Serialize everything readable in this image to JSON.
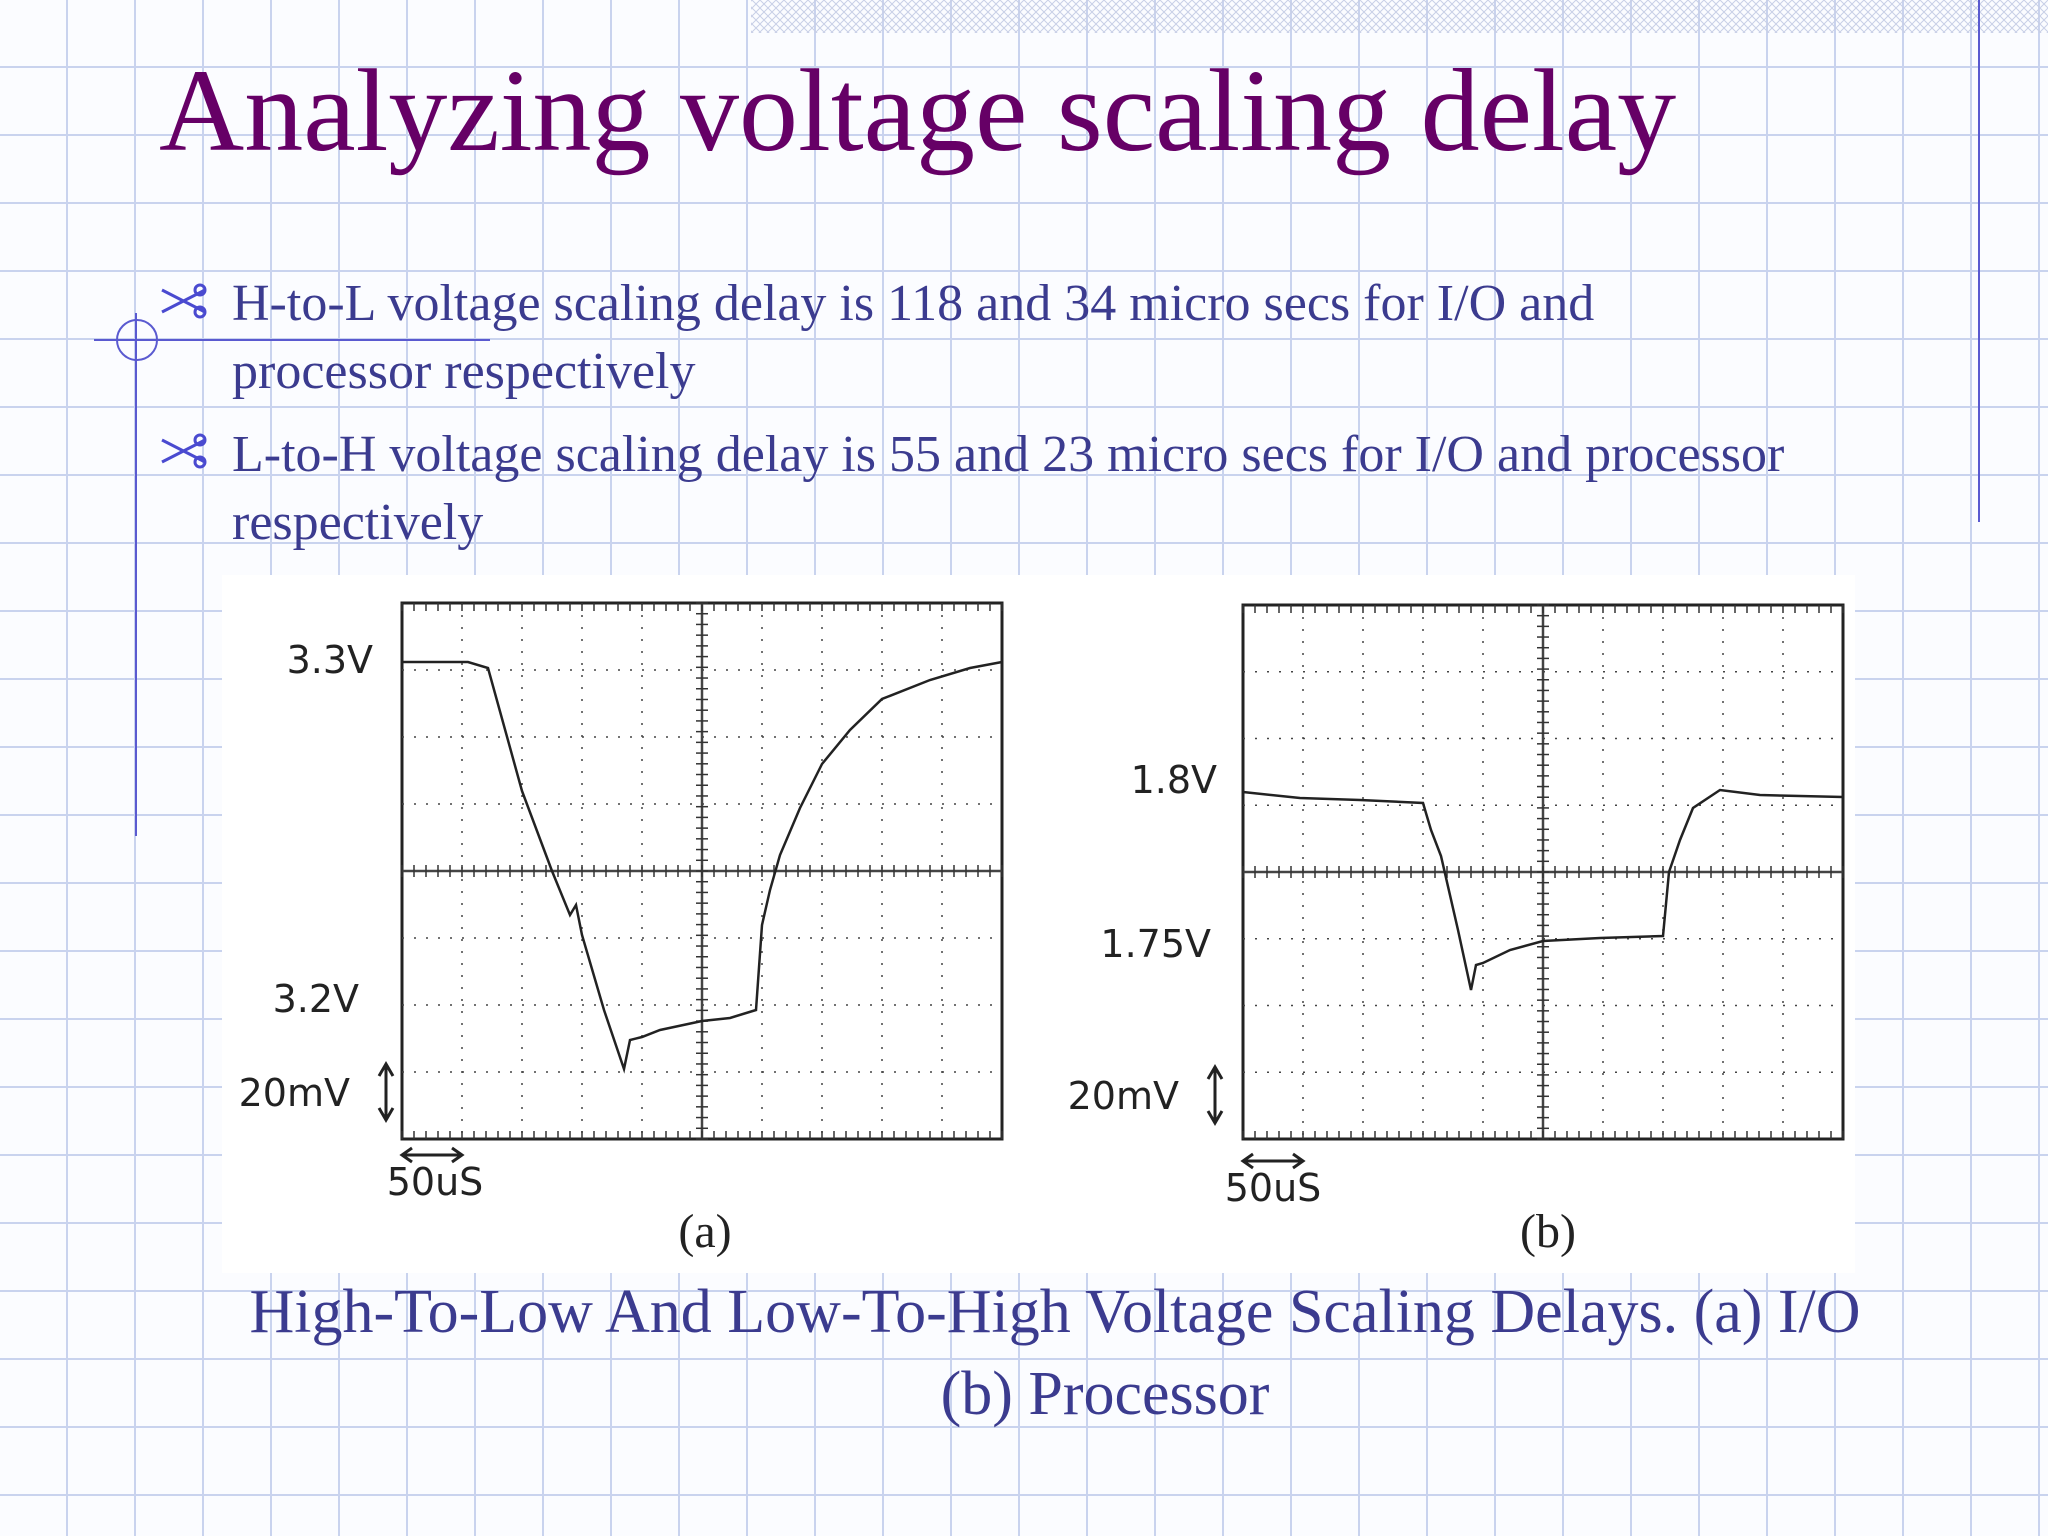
{
  "title": "Analyzing voltage scaling delay",
  "bullets": [
    "H-to-L voltage scaling delay is 118 and 34 micro secs for I/O and processor respectively",
    "L-to-H voltage scaling delay is 55 and 23 micro secs for I/O and processor respectively"
  ],
  "figures": [
    {
      "levels": [
        "3.3V",
        "3.2V"
      ],
      "v_scale": "20mV",
      "t_scale": "50uS",
      "tag": "(a)"
    },
    {
      "levels": [
        "1.8V",
        "1.75V"
      ],
      "v_scale": "20mV",
      "t_scale": "50uS",
      "tag": "(b)"
    }
  ],
  "caption": [
    "High-To-Low And Low-To-High Voltage Scaling Delays. (a) I/O",
    "(b) Processor"
  ]
}
